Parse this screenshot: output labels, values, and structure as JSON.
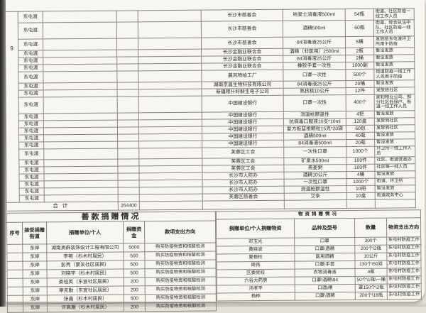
{
  "colors": {
    "paper": "#f7f6f1",
    "grid_line": "#8a867e",
    "text": "#2b2a26"
  },
  "top_table": {
    "serial": "9",
    "total_label": "合计",
    "total_value": "264400",
    "rows": [
      {
        "street": "东屯渡",
        "donor": "长沙市慈善会",
        "item": "哈爱士消毒液500ml",
        "qty": "54瓶",
        "use": "街道、社区防疫一线工作人员",
        "h": 2
      },
      {
        "street": "东屯渡",
        "donor": "长沙市慈善会",
        "item": "酒精500ml",
        "qty": "60瓶",
        "use": "街道、综合执法中队、社区防疫一线工作人员",
        "h": 3
      },
      {
        "street": "东屯渡",
        "donor": "长沙市慈善会",
        "item": "84消毒液25公斤",
        "qty": "5桶",
        "use": "发放给东屯渡环卫所用于防疫",
        "h": 2
      },
      {
        "street": "东屯渡",
        "donor": "长沙金融业联合会",
        "item": "酒精（非医用）2500ml",
        "qty": "2瓶",
        "use": "暂没发放",
        "h": 1
      },
      {
        "street": "东屯渡",
        "donor": "长沙金融业联合会",
        "item": "84消毒液25公斤",
        "qty": "2桶",
        "use": "暂没发放",
        "h": 1
      },
      {
        "street": "东屯渡",
        "donor": "长沙金融业联合会",
        "item": "橡胶手套一次性",
        "qty": "1000副",
        "use": "暂没发放",
        "h": 1
      },
      {
        "street": "东屯渡",
        "donor": "晨风喷绘工厂",
        "item": "口罩一次性",
        "qty": "500个",
        "use": "街道防疫一线工作人员用于防疫",
        "h": 2
      },
      {
        "street": "东屯渡",
        "donor": "湖南京昌生物科技有限公司",
        "item": "84消毒液25公斤",
        "qty": "20桶",
        "use": "暂没发放",
        "h": 1
      },
      {
        "street": "东屯渡",
        "donor": "新疆喀什好鲜生电子公司",
        "item": "熟核桃10公斤",
        "qty": "12件",
        "use": "发放给社区",
        "h": 1
      },
      {
        "street": "东屯渡",
        "donor": "中国建设银行",
        "item": "口罩一次性",
        "qty": "400个",
        "use": "家和物业公司、部分社区低保户、街道一线工作人员",
        "h": 3
      },
      {
        "street": "东屯渡",
        "donor": "中国建设银行",
        "item": "测温枪额温性",
        "qty": "4把",
        "use": "暂没发放",
        "h": 1
      },
      {
        "street": "东屯渡",
        "donor": "中国建设银行",
        "item": "抗病毒口服液10支*10ml",
        "qty": "120盒",
        "use": "发放到社区",
        "h": 1
      },
      {
        "street": "东屯渡",
        "donor": "中国建设银行",
        "item": "复方板蓝根颗粒15克*20袋",
        "qty": "60包",
        "use": "发放到社区",
        "h": 1
      },
      {
        "street": "东屯渡",
        "donor": "中国建设银行",
        "item": "酒精500ml",
        "qty": "40瓶",
        "use": "暂没发放",
        "h": 1
      },
      {
        "street": "东屯渡",
        "donor": "中国建设银行",
        "item": "84消毒液500ml",
        "qty": "20瓶",
        "use": "暂没发放",
        "h": 1
      },
      {
        "street": "东屯渡",
        "donor": "芙蓉区工会",
        "item": "一次性口罩",
        "qty": "1000个",
        "use": "环卫所一线工作人员",
        "h": 1
      },
      {
        "street": "东屯渡",
        "donor": "芙蓉区工会",
        "item": "矿泉水500ml",
        "qty": "100件",
        "use": "社区、街道党政办",
        "h": 1
      },
      {
        "street": "东屯渡",
        "donor": "芙蓉区工会",
        "item": "燕麦粥",
        "qty": "100件",
        "use": "社区等一线人员",
        "h": 1
      },
      {
        "street": "东屯渡",
        "donor": "长沙市人防办",
        "item": "酒精10公斤",
        "qty": "4桶",
        "use": "暂没发放",
        "h": 1
      },
      {
        "street": "东屯渡",
        "donor": "长沙市人防办",
        "item": "一次性口罩",
        "qty": "1000个",
        "use": "街道、环卫所",
        "h": 1
      },
      {
        "street": "东屯渡",
        "donor": "长沙市人防办",
        "item": "测温枪额温性",
        "qty": "10把",
        "use": "暂没发放",
        "h": 1
      },
      {
        "street": "东屯渡",
        "donor": "芙蓉区慈善会",
        "item": "艾条",
        "qty": "10盒",
        "use": "街道政务中心",
        "h": 1
      }
    ]
  },
  "money_table": {
    "title": "善款捐赠情况",
    "headers": [
      "序号",
      "接受捐赠街道",
      "捐赠单位/个人",
      "捐赠资金",
      "款项支出方向"
    ],
    "rows": [
      {
        "no": "",
        "street": "东岸",
        "donor": "湖南奥群装饰设计工程有限公司",
        "amount": "5000",
        "use": "购买防疫物资和核酸检测"
      },
      {
        "no": "",
        "street": "东岸",
        "donor": "李艳（杉木村居民）",
        "amount": "500",
        "use": "购买防疫物资和核酸检测"
      },
      {
        "no": "",
        "street": "东岸",
        "donor": "彭亮（蒙友社区居民）",
        "amount": "500",
        "use": "购买防疫物资和核酸检测"
      },
      {
        "no": "",
        "street": "东岸",
        "donor": "刘晓宇（杉木村居民）",
        "amount": "500",
        "use": "购买防疫物资和核酸检测"
      },
      {
        "no": "",
        "street": "东岸",
        "donor": "娄桂英（东宜社区居民）",
        "amount": "200",
        "use": "购买防疫物资和核酸检测"
      },
      {
        "no": "",
        "street": "东岸",
        "donor": "章克勤（东宜社区居民）",
        "amount": "200",
        "use": "购买防疫物资和核酸检测"
      },
      {
        "no": "",
        "street": "东岸",
        "donor": "张鑫（杉木村居民）",
        "amount": "500",
        "use": "购买防疫物资和核酸检测"
      },
      {
        "no": "",
        "street": "东岸",
        "donor": "许高雁（杉木村居民）",
        "amount": "200",
        "use": "购买防疫物资和核酸检测"
      }
    ]
  },
  "goods_table": {
    "title": "物资捐赠情况",
    "headers": [
      "捐赠单位/个人捐赠物资",
      "品种及型号",
      "数量",
      "物资支出方向"
    ],
    "rows": [
      {
        "donor": "邓玉光",
        "item": "口罩",
        "qty": "300个",
        "use": "东屯村防疫工作"
      },
      {
        "donor": "黄晓波",
        "item": "口罩\\酒精",
        "qty": "200个\\2瓶",
        "use": "东屯村防疫工作"
      },
      {
        "donor": "夏根柱",
        "item": "医用酒精",
        "qty": "10公斤",
        "use": "东屯村防疫工作"
      },
      {
        "donor": "周伟",
        "item": "口罩\\手套",
        "qty": "130个\\50双",
        "use": "东屯村防疫工作"
      },
      {
        "donor": "区委党校",
        "item": "衣物消毒液",
        "qty": "4瓶",
        "use": "东屯村防疫工作"
      },
      {
        "donor": "六谷大药房",
        "item": "口罩\\酒精\\84",
        "qty": "50个\\1瓶\\一桶",
        "use": "东屯村防疫工作"
      },
      {
        "donor": "汤孝平",
        "item": "口酒\\精",
        "qty": "罩150个\\2瓶",
        "use": "东屯村防疫工作"
      },
      {
        "donor": "杨桦",
        "item": "口罩\\酒精",
        "qty": "200个\\18瓶",
        "use": "东屯村防疫工作"
      }
    ]
  }
}
